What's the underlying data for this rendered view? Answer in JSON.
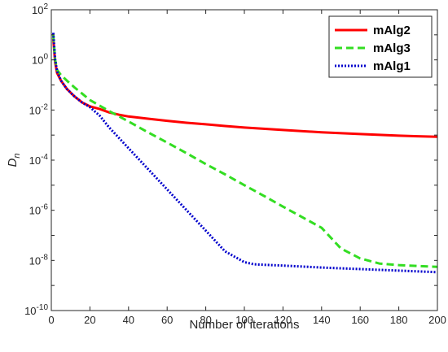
{
  "chart_data": {
    "type": "line",
    "title": "",
    "xlabel": "Number of iterations",
    "ylabel_main": "D",
    "ylabel_sub": "n",
    "xlim": [
      0,
      200
    ],
    "ylim": [
      1e-10,
      100
    ],
    "yscale": "log",
    "grid": false,
    "legend_position": "top-right",
    "x_ticks": [
      "0",
      "20",
      "40",
      "60",
      "80",
      "100",
      "120",
      "140",
      "160",
      "180",
      "200"
    ],
    "y_ticks": [
      {
        "base": "10",
        "exp": "2"
      },
      {
        "base": "10",
        "exp": "0"
      },
      {
        "base": "10",
        "exp": "-2"
      },
      {
        "base": "10",
        "exp": "-4"
      },
      {
        "base": "10",
        "exp": "-6"
      },
      {
        "base": "10",
        "exp": "-8"
      },
      {
        "base": "10",
        "exp": "-10"
      }
    ],
    "series": [
      {
        "name": "mAlg2",
        "color": "#ff0000",
        "style": "solid",
        "x": [
          1,
          2,
          3,
          5,
          8,
          12,
          16,
          20,
          25,
          30,
          35,
          40,
          50,
          60,
          70,
          80,
          90,
          100,
          120,
          140,
          160,
          180,
          200
        ],
        "y": [
          7.0,
          0.8,
          0.3,
          0.15,
          0.07,
          0.035,
          0.02,
          0.014,
          0.011,
          0.008,
          0.0065,
          0.0055,
          0.0045,
          0.0037,
          0.0031,
          0.0027,
          0.0023,
          0.002,
          0.0016,
          0.0013,
          0.0011,
          0.00095,
          0.00085
        ]
      },
      {
        "name": "mAlg3",
        "color": "#33dd22",
        "style": "dashed",
        "x": [
          1,
          2,
          3,
          5,
          8,
          12,
          16,
          20,
          25,
          30,
          40,
          50,
          60,
          70,
          80,
          90,
          100,
          110,
          120,
          130,
          140,
          150,
          160,
          170,
          180,
          190,
          200
        ],
        "y": [
          10,
          1.0,
          0.4,
          0.25,
          0.15,
          0.08,
          0.045,
          0.025,
          0.015,
          0.009,
          0.0035,
          0.0013,
          0.0005,
          0.00019,
          7e-05,
          2.7e-05,
          1e-05,
          3.8e-06,
          1.4e-06,
          5.3e-07,
          2e-07,
          3e-08,
          1.2e-08,
          7.5e-09,
          6.5e-09,
          6e-09,
          5.5e-09
        ]
      },
      {
        "name": "mAlg1",
        "color": "#0000cc",
        "style": "dotted",
        "x": [
          1,
          2,
          3,
          5,
          8,
          12,
          16,
          20,
          25,
          30,
          40,
          50,
          60,
          70,
          80,
          90,
          100,
          105,
          110,
          120,
          140,
          160,
          180,
          200
        ],
        "y": [
          12,
          1.0,
          0.35,
          0.15,
          0.07,
          0.035,
          0.02,
          0.013,
          0.006,
          0.002,
          0.0003,
          4.5e-05,
          6.8e-06,
          1.02e-06,
          1.54e-07,
          2.3e-08,
          8.5e-09,
          7e-09,
          6.7e-09,
          6.2e-09,
          5.2e-09,
          4.5e-09,
          3.9e-09,
          3.4e-09
        ]
      }
    ]
  }
}
